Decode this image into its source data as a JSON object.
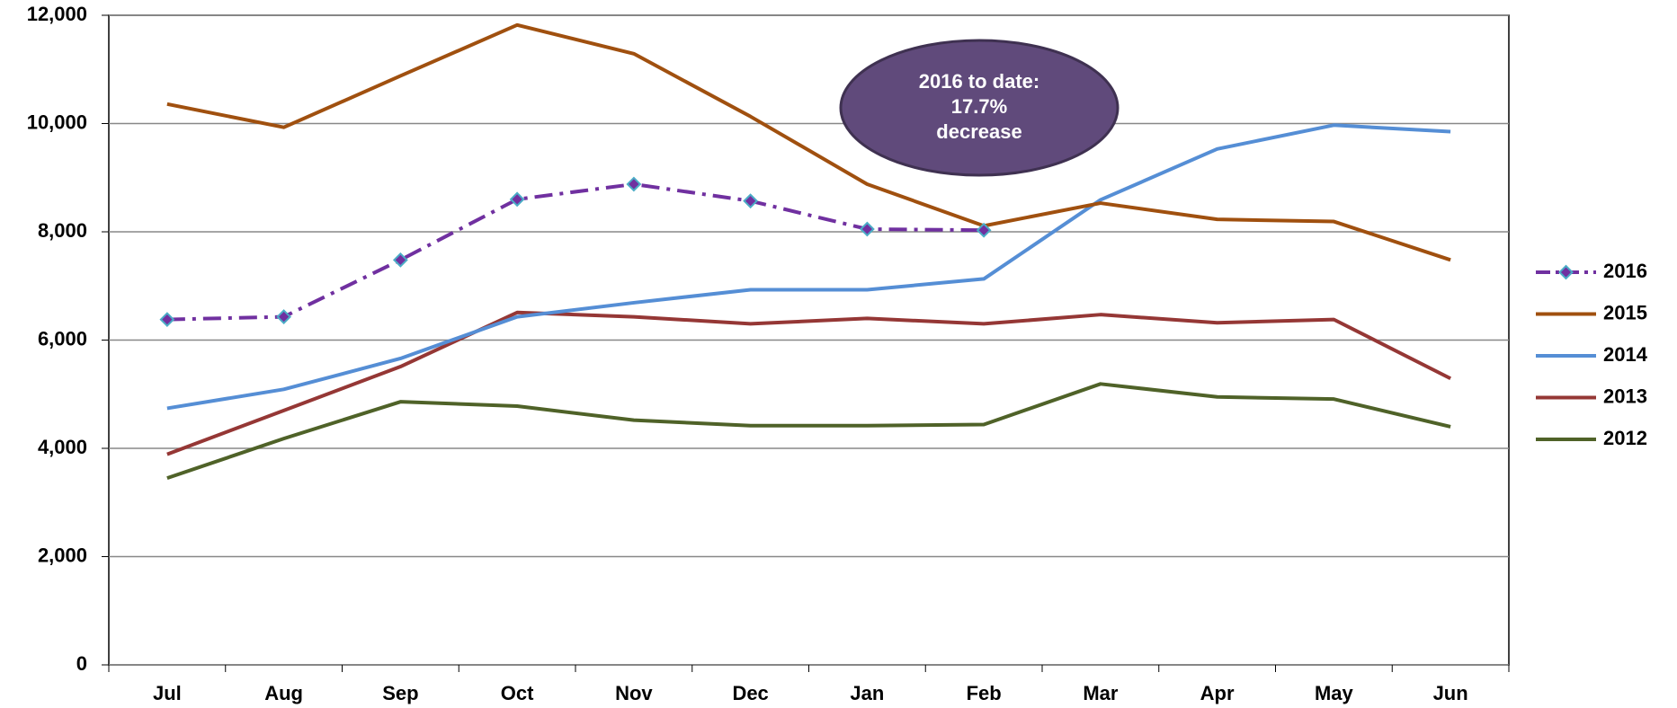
{
  "chart_data": {
    "type": "line",
    "categories": [
      "Jul",
      "Aug",
      "Sep",
      "Oct",
      "Nov",
      "Dec",
      "Jan",
      "Feb",
      "Mar",
      "Apr",
      "May",
      "Jun"
    ],
    "series": [
      {
        "name": "2016",
        "color": "#7030a0",
        "dashed": true,
        "marker": "diamond",
        "marker_color": "#4bacc6",
        "values": [
          6380,
          6430,
          7480,
          8600,
          8880,
          8570,
          8050,
          8030,
          null,
          null,
          null,
          null
        ]
      },
      {
        "name": "2015",
        "color": "#a0500f",
        "values": [
          10360,
          9930,
          10880,
          11820,
          11290,
          10130,
          8880,
          8110,
          8530,
          8230,
          8190,
          7480
        ]
      },
      {
        "name": "2014",
        "color": "#558ed5",
        "values": [
          4740,
          5090,
          5660,
          6430,
          6690,
          6930,
          6930,
          7130,
          8590,
          9530,
          9970,
          9850
        ]
      },
      {
        "name": "2013",
        "color": "#953735",
        "values": [
          3890,
          4700,
          5510,
          6510,
          6430,
          6300,
          6400,
          6300,
          6470,
          6320,
          6380,
          5290
        ]
      },
      {
        "name": "2012",
        "color": "#4f6228",
        "values": [
          3450,
          4180,
          4860,
          4780,
          4520,
          4420,
          4420,
          4440,
          5190,
          4950,
          4910,
          4400
        ]
      }
    ],
    "ylim": [
      0,
      12000
    ],
    "yticks": [
      0,
      {
        "value": 2000,
        "label": "2,000"
      },
      {
        "value": 4000,
        "label": "4,000"
      },
      {
        "value": 6000,
        "label": "6,000"
      },
      {
        "value": 8000,
        "label": "8,000"
      },
      {
        "value": 10000,
        "label": "10,000"
      },
      {
        "value": 12000,
        "label": "12,000"
      }
    ],
    "grid": true,
    "legend": "right",
    "annotation": {
      "lines": [
        "2016 to date:",
        "17.7%",
        "decrease"
      ],
      "color": "#604a7b"
    }
  }
}
